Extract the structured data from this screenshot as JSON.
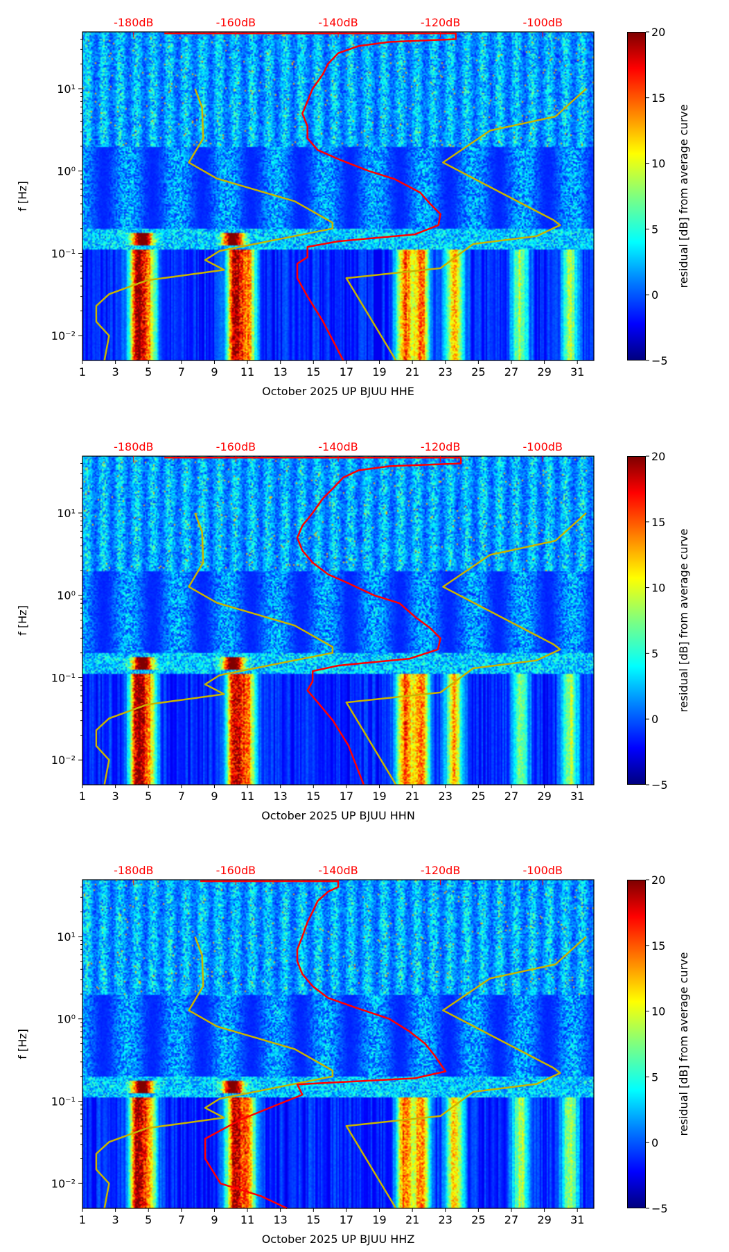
{
  "chart_data": [
    {
      "type": "heatmap",
      "title": "",
      "xlabel": "October 2025 UP BJUU  HHE",
      "ylabel": "f [Hz]",
      "colorbar_label": "residual [dB] from average curve"
    },
    {
      "type": "heatmap",
      "title": "",
      "xlabel": "October 2025 UP BJUU  HHN",
      "ylabel": "f [Hz]",
      "colorbar_label": "residual [dB] from average curve"
    },
    {
      "type": "heatmap",
      "title": "",
      "xlabel": "October 2025 UP BJUU  HHZ",
      "ylabel": "f [Hz]",
      "colorbar_label": "residual [dB] from average curve"
    }
  ],
  "axes": {
    "xlim": [
      1,
      32
    ],
    "x_ticks": [
      "1",
      "3",
      "5",
      "7",
      "9",
      "11",
      "13",
      "15",
      "17",
      "19",
      "21",
      "23",
      "25",
      "27",
      "29",
      "31"
    ],
    "ylim_hz": [
      0.005,
      49
    ],
    "y_ticks": [
      {
        "v": -2,
        "label": "10⁻²"
      },
      {
        "v": -1,
        "label": "10⁻¹"
      },
      {
        "v": 0,
        "label": "10⁰"
      },
      {
        "v": 1,
        "label": "10¹"
      }
    ],
    "top_db_lim": [
      -190,
      -90
    ],
    "top_ticks": [
      "-180dB",
      "-160dB",
      "-140dB",
      "-120dB",
      "-100dB"
    ],
    "top_tick_values": [
      -180,
      -160,
      -140,
      -120,
      -100
    ],
    "colorbar_lim": [
      -5,
      20
    ],
    "colorbar_ticks": [
      "−5",
      "0",
      "5",
      "10",
      "15",
      "20"
    ],
    "colorbar_values": [
      -5,
      0,
      5,
      10,
      15,
      20
    ]
  },
  "models": {
    "color": "#c8b400",
    "nlnm": [
      [
        -185.7,
        0.005
      ],
      [
        -184.8,
        0.01
      ],
      [
        -187.3,
        0.0148
      ],
      [
        -187.3,
        0.023
      ],
      [
        -184.8,
        0.032
      ],
      [
        -177.4,
        0.047
      ],
      [
        -162.3,
        0.063
      ],
      [
        -166.0,
        0.083
      ],
      [
        -163.2,
        0.107
      ],
      [
        -141.1,
        0.2
      ],
      [
        -141.1,
        0.236
      ],
      [
        -148.5,
        0.43
      ],
      [
        -163.7,
        0.81
      ],
      [
        -169.2,
        1.27
      ],
      [
        -166.4,
        2.5
      ],
      [
        -166.6,
        5.9
      ],
      [
        -168.0,
        10
      ]
    ],
    "nhnm": [
      [
        -128.7,
        0.005
      ],
      [
        -138.4,
        0.05
      ],
      [
        -120,
        0.066
      ],
      [
        -113.6,
        0.13
      ],
      [
        -101.2,
        0.162
      ],
      [
        -96.6,
        0.22
      ],
      [
        -97.9,
        0.254
      ],
      [
        -119.5,
        1.27
      ],
      [
        -110.3,
        3.1
      ],
      [
        -97.5,
        4.6
      ],
      [
        -91.5,
        10
      ]
    ]
  },
  "average_curves": {
    "color": "#ff0000",
    "HHE": [
      [
        -174,
        47
      ],
      [
        -117,
        47
      ],
      [
        -117,
        40
      ],
      [
        -130,
        37
      ],
      [
        -136,
        33
      ],
      [
        -140,
        27
      ],
      [
        -142,
        20
      ],
      [
        -143,
        15
      ],
      [
        -145,
        10
      ],
      [
        -146,
        7
      ],
      [
        -147,
        5
      ],
      [
        -146,
        3.5
      ],
      [
        -146,
        2.5
      ],
      [
        -144,
        1.8
      ],
      [
        -140,
        1.4
      ],
      [
        -134,
        1.0
      ],
      [
        -129,
        0.8
      ],
      [
        -124,
        0.55
      ],
      [
        -122,
        0.4
      ],
      [
        -120,
        0.3
      ],
      [
        -120.4,
        0.22
      ],
      [
        -125,
        0.17
      ],
      [
        -140,
        0.14
      ],
      [
        -146,
        0.12
      ],
      [
        -146,
        0.09
      ],
      [
        -148,
        0.075
      ],
      [
        -148,
        0.05
      ],
      [
        -146,
        0.03
      ],
      [
        -143,
        0.015
      ],
      [
        -139,
        0.005
      ]
    ],
    "HHN": [
      [
        -174,
        47
      ],
      [
        -116,
        47
      ],
      [
        -116,
        40
      ],
      [
        -130,
        37
      ],
      [
        -136,
        33
      ],
      [
        -139,
        27
      ],
      [
        -141,
        20
      ],
      [
        -143,
        15
      ],
      [
        -145,
        10
      ],
      [
        -147,
        7
      ],
      [
        -148,
        5
      ],
      [
        -147,
        3.5
      ],
      [
        -145,
        2.5
      ],
      [
        -142,
        1.8
      ],
      [
        -138,
        1.4
      ],
      [
        -133,
        1.0
      ],
      [
        -128,
        0.8
      ],
      [
        -125,
        0.55
      ],
      [
        -122,
        0.4
      ],
      [
        -120,
        0.3
      ],
      [
        -120.5,
        0.22
      ],
      [
        -126,
        0.17
      ],
      [
        -140,
        0.14
      ],
      [
        -145,
        0.12
      ],
      [
        -145,
        0.09
      ],
      [
        -146,
        0.07
      ],
      [
        -144,
        0.05
      ],
      [
        -141,
        0.03
      ],
      [
        -138,
        0.015
      ],
      [
        -135,
        0.005
      ]
    ],
    "HHZ": [
      [
        -167,
        47
      ],
      [
        -140,
        47
      ],
      [
        -140,
        40
      ],
      [
        -142,
        35
      ],
      [
        -144,
        27
      ],
      [
        -145,
        20
      ],
      [
        -146,
        15
      ],
      [
        -147,
        10
      ],
      [
        -148,
        7
      ],
      [
        -148,
        5
      ],
      [
        -147,
        3.5
      ],
      [
        -145,
        2.5
      ],
      [
        -142,
        1.8
      ],
      [
        -137,
        1.4
      ],
      [
        -130,
        1.0
      ],
      [
        -126,
        0.7
      ],
      [
        -123,
        0.5
      ],
      [
        -121,
        0.35
      ],
      [
        -119,
        0.23
      ],
      [
        -125,
        0.19
      ],
      [
        -140,
        0.17
      ],
      [
        -148,
        0.16
      ],
      [
        -147,
        0.12
      ],
      [
        -152,
        0.09
      ],
      [
        -159,
        0.06
      ],
      [
        -166,
        0.035
      ],
      [
        -166,
        0.02
      ],
      [
        -163,
        0.01
      ],
      [
        -155,
        0.007
      ],
      [
        -150,
        0.005
      ]
    ]
  }
}
